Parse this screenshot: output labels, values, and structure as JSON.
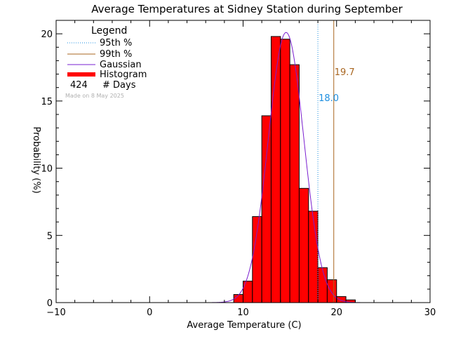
{
  "chart_data": {
    "type": "bar",
    "title": "Average Temperatures at Sidney Station during September",
    "xlabel": "Average Temperature (C)",
    "ylabel": "Probability (%)",
    "xlim": [
      -10,
      30
    ],
    "ylim": [
      0,
      21
    ],
    "x_ticks": [
      -10,
      0,
      10,
      20,
      30
    ],
    "y_ticks": [
      0,
      5,
      10,
      15,
      20
    ],
    "bin_width": 1,
    "bins": [
      {
        "x0": 9,
        "value": 0.6
      },
      {
        "x0": 10,
        "value": 1.6
      },
      {
        "x0": 11,
        "value": 6.4
      },
      {
        "x0": 12,
        "value": 13.9
      },
      {
        "x0": 13,
        "value": 19.8
      },
      {
        "x0": 14,
        "value": 19.6
      },
      {
        "x0": 15,
        "value": 17.7
      },
      {
        "x0": 16,
        "value": 8.5
      },
      {
        "x0": 17,
        "value": 6.8
      },
      {
        "x0": 18,
        "value": 2.6
      },
      {
        "x0": 19,
        "value": 1.7
      },
      {
        "x0": 20,
        "value": 0.45
      },
      {
        "x0": 21,
        "value": 0.2
      }
    ],
    "gaussian": {
      "mean": 14.6,
      "sigma": 1.9,
      "peak": 20.1,
      "color": "#7a1fd0"
    },
    "percentile_95": {
      "value": 18.0,
      "label": "18.0",
      "color": "#1e8fe0"
    },
    "percentile_99": {
      "value": 19.7,
      "label": "19.7",
      "color": "#a8651f"
    },
    "histogram_color": "#ff0000",
    "legend": {
      "title": "Legend",
      "entries": [
        "95th %",
        "99th %",
        "Gaussian",
        "Histogram"
      ],
      "days_count": "424",
      "days_label": "# Days",
      "made_on": "Made on 8 May 2025"
    }
  }
}
